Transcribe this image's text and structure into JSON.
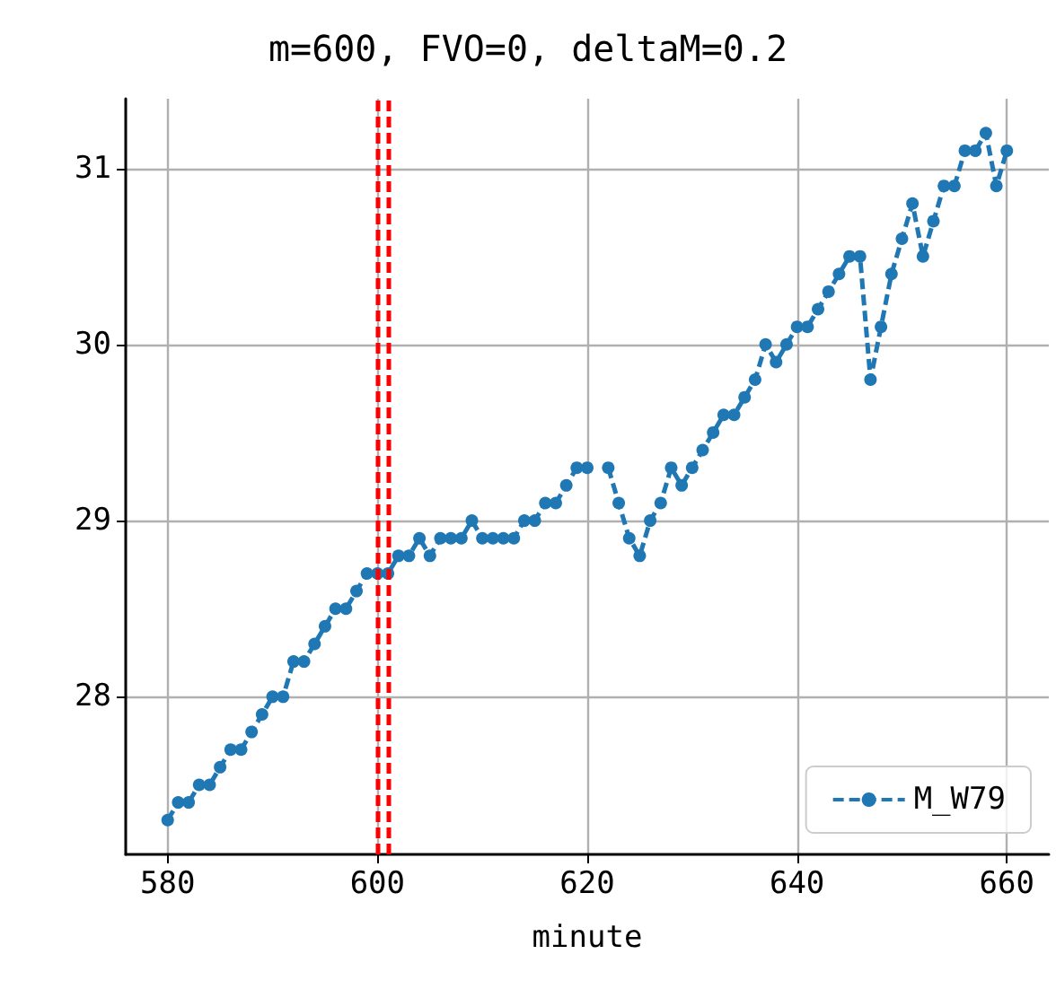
{
  "chart_data": {
    "type": "line",
    "title": "m=600, FVO=0, deltaM=0.2",
    "xlabel": "minute",
    "x": [
      580,
      581,
      582,
      583,
      584,
      585,
      586,
      587,
      588,
      589,
      590,
      591,
      592,
      593,
      594,
      595,
      596,
      597,
      598,
      599,
      600,
      601,
      602,
      603,
      604,
      605,
      606,
      607,
      608,
      609,
      610,
      611,
      612,
      613,
      614,
      615,
      616,
      617,
      618,
      619,
      620,
      621,
      622,
      623,
      624,
      625,
      626,
      627,
      628,
      629,
      630,
      631,
      632,
      633,
      634,
      635,
      636,
      637,
      638,
      639,
      640,
      641,
      642,
      643,
      644,
      645,
      646,
      647,
      648,
      649,
      650,
      651,
      652,
      653,
      654,
      655,
      656,
      657,
      658,
      659,
      660
    ],
    "series": [
      {
        "name": "M_W79",
        "color": "#1f77b4",
        "values": [
          27.3,
          27.4,
          27.4,
          27.5,
          27.5,
          27.6,
          27.7,
          27.7,
          27.8,
          27.9,
          28.0,
          28.0,
          28.2,
          28.2,
          28.3,
          28.4,
          28.5,
          28.5,
          28.6,
          28.7,
          28.7,
          28.7,
          28.8,
          28.8,
          28.9,
          28.8,
          28.9,
          28.9,
          28.9,
          29.0,
          28.9,
          28.9,
          28.9,
          28.9,
          29.0,
          29.0,
          29.1,
          29.1,
          29.2,
          29.3,
          29.3,
          null,
          29.3,
          29.1,
          28.9,
          28.8,
          29.0,
          29.1,
          29.3,
          29.2,
          29.3,
          29.4,
          29.5,
          29.6,
          29.6,
          29.7,
          29.8,
          30.0,
          29.9,
          30.0,
          30.1,
          30.1,
          30.2,
          30.3,
          30.4,
          30.5,
          30.5,
          29.8,
          30.1,
          30.4,
          30.6,
          30.8,
          30.5,
          30.7,
          30.9,
          30.9,
          31.1,
          31.1,
          31.2,
          30.9,
          31.1
        ]
      }
    ],
    "xlim": [
      576,
      664
    ],
    "xticks": [
      580,
      600,
      620,
      640,
      660
    ],
    "ylim": [
      27.105,
      31.395
    ],
    "yticks": [
      28,
      29,
      30,
      31
    ],
    "ref_lines": [
      {
        "axis": "x",
        "value": 600,
        "color": "#ff0000",
        "line_style": "dashed"
      },
      {
        "axis": "x",
        "value": 601,
        "color": "#ff0000",
        "line_style": "dashed"
      }
    ],
    "grid": true,
    "legend": "bottom right",
    "marker": "circle",
    "line_style": "dashed"
  }
}
